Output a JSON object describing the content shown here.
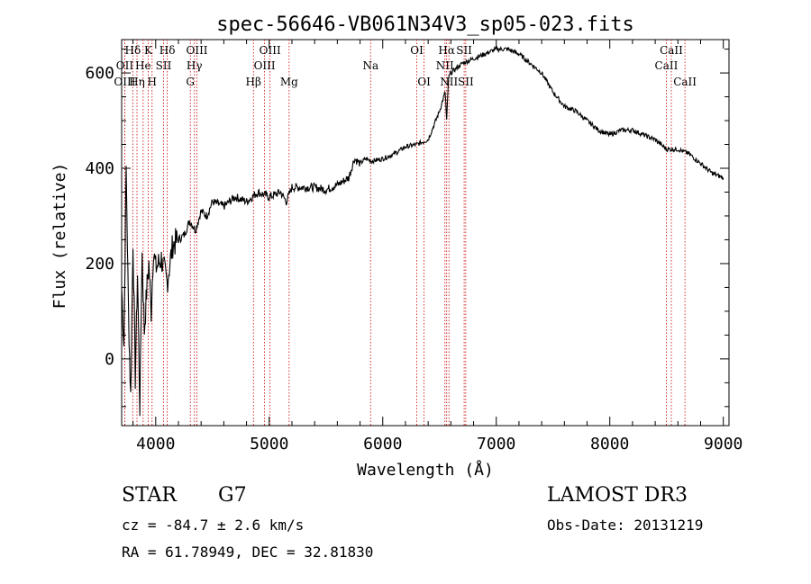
{
  "chart_data": {
    "type": "line",
    "title": "spec-56646-VB061N34V3_sp05-023.fits",
    "xlabel": "Wavelength (Å)",
    "ylabel": "Flux (relative)",
    "xlim": [
      3700,
      9050
    ],
    "ylim": [
      -140,
      670
    ],
    "xticks": [
      4000,
      5000,
      6000,
      7000,
      8000,
      9000
    ],
    "yticks": [
      0,
      200,
      400,
      600
    ],
    "series": [
      {
        "name": "spectrum",
        "x": [
          3700,
          3720,
          3740,
          3760,
          3780,
          3800,
          3820,
          3840,
          3860,
          3880,
          3900,
          3920,
          3940,
          3960,
          3980,
          4000,
          4050,
          4100,
          4150,
          4200,
          4250,
          4300,
          4350,
          4400,
          4450,
          4500,
          4600,
          4700,
          4800,
          4850,
          4900,
          5000,
          5100,
          5150,
          5200,
          5300,
          5400,
          5500,
          5600,
          5700,
          5750,
          5800,
          5850,
          5900,
          6000,
          6100,
          6200,
          6300,
          6400,
          6500,
          6550,
          6563,
          6580,
          6600,
          6700,
          6800,
          6900,
          7000,
          7100,
          7200,
          7300,
          7400,
          7500,
          7600,
          7700,
          7800,
          7900,
          8000,
          8100,
          8200,
          8300,
          8400,
          8500,
          8600,
          8700,
          8800,
          8900,
          9000
        ],
        "y": [
          150,
          30,
          400,
          100,
          -80,
          250,
          -40,
          180,
          -100,
          220,
          60,
          140,
          200,
          100,
          230,
          190,
          210,
          160,
          240,
          250,
          260,
          290,
          270,
          310,
          300,
          330,
          320,
          340,
          330,
          340,
          350,
          340,
          350,
          330,
          360,
          360,
          360,
          355,
          365,
          380,
          420,
          410,
          420,
          415,
          420,
          430,
          445,
          450,
          460,
          520,
          560,
          500,
          590,
          600,
          620,
          630,
          640,
          650,
          650,
          640,
          620,
          600,
          560,
          530,
          520,
          500,
          480,
          470,
          480,
          480,
          470,
          460,
          440,
          440,
          430,
          410,
          390,
          380
        ]
      }
    ],
    "lines": [
      {
        "name": "Hδ",
        "wave": 3798,
        "row": 0
      },
      {
        "name": "OII",
        "wave": 3727,
        "row": 1
      },
      {
        "name": "He",
        "wave": 3889,
        "row": 1
      },
      {
        "name": "OIII",
        "wave": 3727,
        "row": 2
      },
      {
        "name": "Hη",
        "wave": 3835,
        "row": 2
      },
      {
        "name": "K",
        "wave": 3934,
        "row": 0
      },
      {
        "name": "H",
        "wave": 3968,
        "row": 2
      },
      {
        "name": "SII",
        "wave": 4069,
        "row": 1
      },
      {
        "name": "Hδ",
        "wave": 4102,
        "row": 0
      },
      {
        "name": "OIII",
        "wave": 4363,
        "row": 0
      },
      {
        "name": "Hγ",
        "wave": 4341,
        "row": 1
      },
      {
        "name": "G",
        "wave": 4305,
        "row": 2
      },
      {
        "name": "Hβ",
        "wave": 4861,
        "row": 2
      },
      {
        "name": "OIII",
        "wave": 5007,
        "row": 0
      },
      {
        "name": "OIII",
        "wave": 4959,
        "row": 1
      },
      {
        "name": "Mg",
        "wave": 5175,
        "row": 2
      },
      {
        "name": "Na",
        "wave": 5893,
        "row": 1
      },
      {
        "name": "OI",
        "wave": 6300,
        "row": 0
      },
      {
        "name": "OI",
        "wave": 6364,
        "row": 2
      },
      {
        "name": "Hα",
        "wave": 6563,
        "row": 0
      },
      {
        "name": "SII",
        "wave": 6717,
        "row": 0
      },
      {
        "name": "NII",
        "wave": 6548,
        "row": 1
      },
      {
        "name": "NII",
        "wave": 6583,
        "row": 2
      },
      {
        "name": "SII",
        "wave": 6731,
        "row": 2
      },
      {
        "name": "CaII",
        "wave": 8542,
        "row": 0
      },
      {
        "name": "CaII",
        "wave": 8498,
        "row": 1
      },
      {
        "name": "CaII",
        "wave": 8662,
        "row": 2
      }
    ]
  },
  "info": {
    "object_class": "STAR",
    "subclass": "G7",
    "survey": "LAMOST DR3",
    "cz": "cz = -84.7 ± 2.6 km/s",
    "obs_date": "Obs-Date: 20131219",
    "coords": "RA =  61.78949, DEC =  32.81830"
  },
  "colors": {
    "spectrum": "#000000",
    "line_marker": "#cc0000"
  }
}
